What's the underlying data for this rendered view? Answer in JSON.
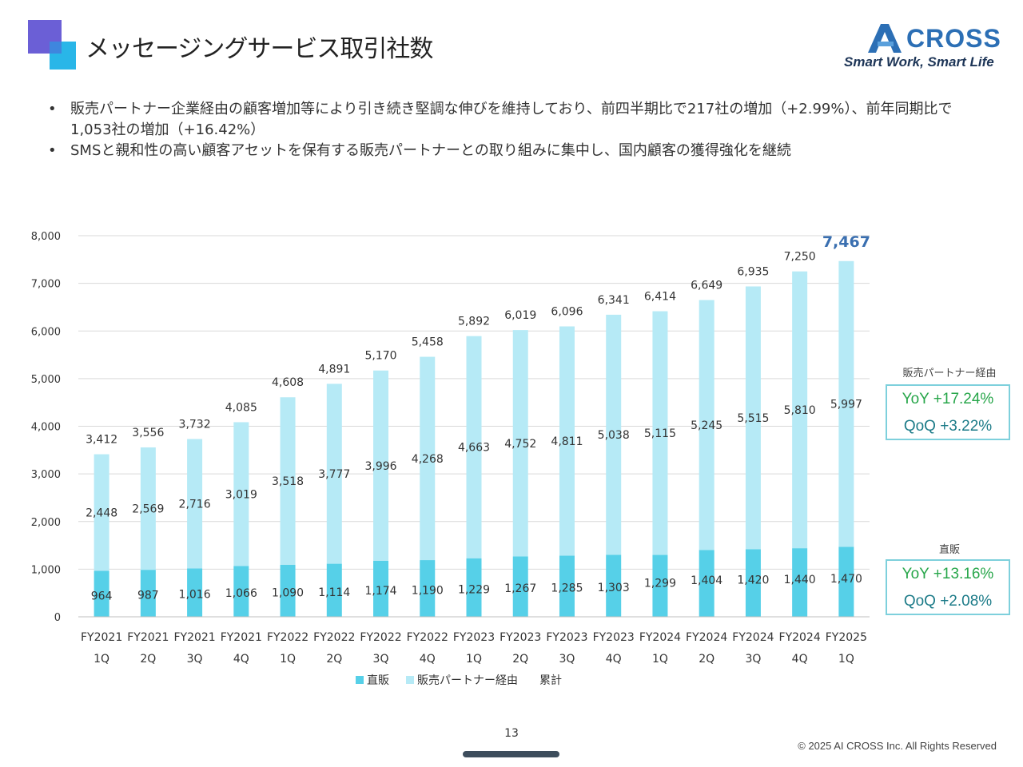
{
  "header": {
    "title": "メッセージングサービス取引社数",
    "logo_text": "CROSS",
    "logo_tagline": "Smart Work, Smart Life"
  },
  "bullets": [
    "販売パートナー企業経由の顧客増加等により引き続き堅調な伸びを維持しており、前四半期比で217社の増加（+2.99%）、前年同期比で1,053社の増加（+16.42%）",
    "SMSと親和性の高い顧客アセットを保有する販売パートナーとの取り組みに集中し、国内顧客の獲得強化を継続"
  ],
  "bullet_marker": "•",
  "colors": {
    "direct": "#56d0e8",
    "partner": "#b6eaf6",
    "total_highlight": "#3a6fb0",
    "grid": "#d9d9d9",
    "kpi_border": "#7ed0dc",
    "yoy": "#27a64a",
    "qoq": "#1c7b88"
  },
  "chart_data": {
    "type": "bar",
    "stacked": true,
    "categories": [
      [
        "FY2021",
        "1Q"
      ],
      [
        "FY2021",
        "2Q"
      ],
      [
        "FY2021",
        "3Q"
      ],
      [
        "FY2021",
        "4Q"
      ],
      [
        "FY2022",
        "1Q"
      ],
      [
        "FY2022",
        "2Q"
      ],
      [
        "FY2022",
        "3Q"
      ],
      [
        "FY2022",
        "4Q"
      ],
      [
        "FY2023",
        "1Q"
      ],
      [
        "FY2023",
        "2Q"
      ],
      [
        "FY2023",
        "3Q"
      ],
      [
        "FY2023",
        "4Q"
      ],
      [
        "FY2024",
        "1Q"
      ],
      [
        "FY2024",
        "2Q"
      ],
      [
        "FY2024",
        "3Q"
      ],
      [
        "FY2024",
        "4Q"
      ],
      [
        "FY2025",
        "1Q"
      ]
    ],
    "series": [
      {
        "name": "直販",
        "values": [
          964,
          987,
          1016,
          1066,
          1090,
          1114,
          1174,
          1190,
          1229,
          1267,
          1285,
          1303,
          1299,
          1404,
          1420,
          1440,
          1470
        ]
      },
      {
        "name": "販売パートナー経由",
        "values": [
          2448,
          2569,
          2716,
          3019,
          3518,
          3777,
          3996,
          4268,
          4663,
          4752,
          4811,
          5038,
          5115,
          5245,
          5515,
          5810,
          5997
        ]
      }
    ],
    "totals_label": "累計",
    "totals": [
      3412,
      3556,
      3732,
      4085,
      4608,
      4891,
      5170,
      5458,
      5892,
      6019,
      6096,
      6341,
      6414,
      6649,
      6935,
      7250,
      7467
    ],
    "ylim": [
      0,
      8000
    ],
    "yticks": [
      0,
      1000,
      2000,
      3000,
      4000,
      5000,
      6000,
      7000,
      8000
    ],
    "grid": true,
    "legend_position": "bottom"
  },
  "kpis": {
    "partner": {
      "label": "販売パートナー経由",
      "yoy": "YoY +17.24%",
      "qoq": "QoQ +3.22%"
    },
    "direct": {
      "label": "直販",
      "yoy": "YoY +13.16%",
      "qoq": "QoQ +2.08%"
    }
  },
  "footer": {
    "page_number": "13",
    "copyright": "© 2025 AI CROSS Inc. All Rights Reserved"
  }
}
